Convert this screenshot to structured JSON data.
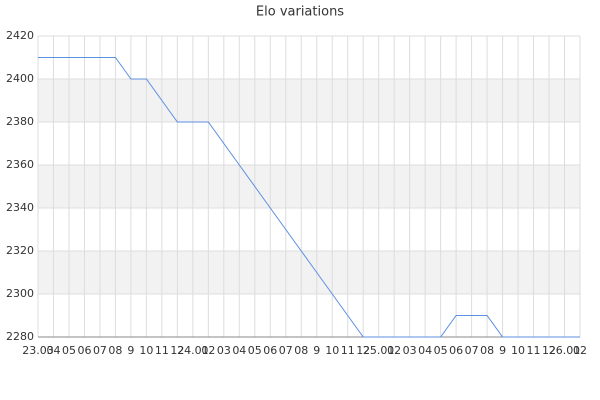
{
  "chart_data": {
    "type": "line",
    "title": "Elo variations",
    "categories": [
      "23.03",
      "04",
      "05",
      "06",
      "07",
      "08",
      "9",
      "10",
      "11",
      "12",
      "24.01",
      "02",
      "03",
      "04",
      "05",
      "06",
      "07",
      "08",
      "9",
      "10",
      "11",
      "12",
      "25.01",
      "02",
      "03",
      "04",
      "05",
      "06",
      "07",
      "08",
      "9",
      "10",
      "11",
      "12",
      "26.01",
      "02"
    ],
    "values": [
      2410,
      2410,
      2410,
      2410,
      2410,
      2410,
      2400,
      2400,
      2390,
      2380,
      2380,
      2380,
      2370,
      2360,
      2350,
      2340,
      2330,
      2320,
      2310,
      2300,
      2290,
      2280,
      2280,
      2280,
      2280,
      2280,
      2280,
      2290,
      2290,
      2290,
      2280,
      2280,
      2280,
      2280,
      2280,
      2280
    ],
    "color": "#5b8fe0",
    "ylim": [
      2280,
      2420
    ],
    "yticks": [
      2280,
      2300,
      2320,
      2340,
      2360,
      2380,
      2400,
      2420
    ],
    "grid": true
  }
}
